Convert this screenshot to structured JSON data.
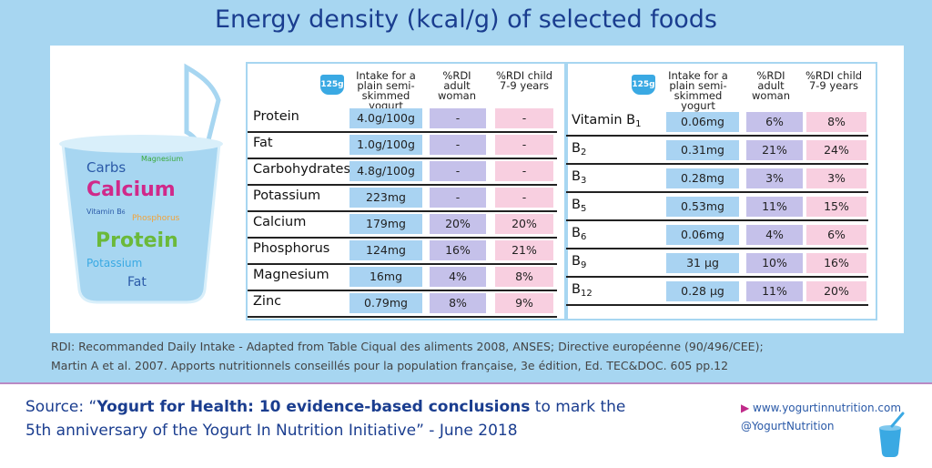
{
  "title": "Energy density (kcal/g) of selected foods",
  "illustration": {
    "cup_label": "125g",
    "words": [
      "Carbs",
      "Magnesium",
      "Calcium",
      "Vitamin B",
      "Phosphorus",
      "Protein",
      "Potassium",
      "Fat"
    ],
    "vitamin_sub": "6"
  },
  "headers": {
    "intake": "Intake for a plain semi-skimmed yogurt",
    "adult": "%RDI adult woman",
    "child": "%RDI child 7-9 years"
  },
  "left_table": [
    {
      "label": "Protein",
      "intake": "4.0g/100g",
      "adult": "-",
      "child": "-"
    },
    {
      "label": "Fat",
      "intake": "1.0g/100g",
      "adult": "-",
      "child": "-"
    },
    {
      "label": "Carbohydrates",
      "intake": "4.8g/100g",
      "adult": "-",
      "child": "-"
    },
    {
      "label": "Potassium",
      "intake": "223mg",
      "adult": "-",
      "child": "-"
    },
    {
      "label": "Calcium",
      "intake": "179mg",
      "adult": "20%",
      "child": "20%"
    },
    {
      "label": "Phosphorus",
      "intake": "124mg",
      "adult": "16%",
      "child": "21%"
    },
    {
      "label": "Magnesium",
      "intake": "16mg",
      "adult": "4%",
      "child": "8%"
    },
    {
      "label": "Zinc",
      "intake": "0.79mg",
      "adult": "8%",
      "child": "9%"
    }
  ],
  "right_table": [
    {
      "label": "Vitamin B",
      "sub": "1",
      "intake": "0.06mg",
      "adult": "6%",
      "child": "8%"
    },
    {
      "label": "B",
      "sub": "2",
      "intake": "0.31mg",
      "adult": "21%",
      "child": "24%"
    },
    {
      "label": "B",
      "sub": "3",
      "intake": "0.28mg",
      "adult": "3%",
      "child": "3%"
    },
    {
      "label": "B",
      "sub": "5",
      "intake": "0.53mg",
      "adult": "11%",
      "child": "15%"
    },
    {
      "label": "B",
      "sub": "6",
      "intake": "0.06mg",
      "adult": "4%",
      "child": "6%"
    },
    {
      "label": "B",
      "sub": "9",
      "intake": "31 µg",
      "adult": "10%",
      "child": "16%"
    },
    {
      "label": "B",
      "sub": "12",
      "intake": "0.28 µg",
      "adult": "11%",
      "child": "20%"
    }
  ],
  "notes": [
    "RDI: Recommanded Daily Intake - Adapted from Table Ciqual des aliments 2008, ANSES; Directive européenne (90/496/CEE);",
    "Martin A et al. 2007. Apports nutritionnels conseillés pour la population française, 3e édition, Ed. TEC&DOC. 605 pp.12"
  ],
  "source": {
    "prefix": "Source: “",
    "bold": "Yogurt for Health: 10 evidence-based conclusions",
    "rest": " to mark the",
    "line2": "5th anniversary of the Yogurt In Nutrition Initiative” - June 2018"
  },
  "links": {
    "website": "www.yogurtinnutrition.com",
    "twitter": "@YogurtNutrition"
  },
  "colors": {
    "intake_cell": "#a9d3f2",
    "adult_cell": "#c5c1ea",
    "child_cell": "#f8cfe0",
    "title": "#1a3d8f"
  }
}
